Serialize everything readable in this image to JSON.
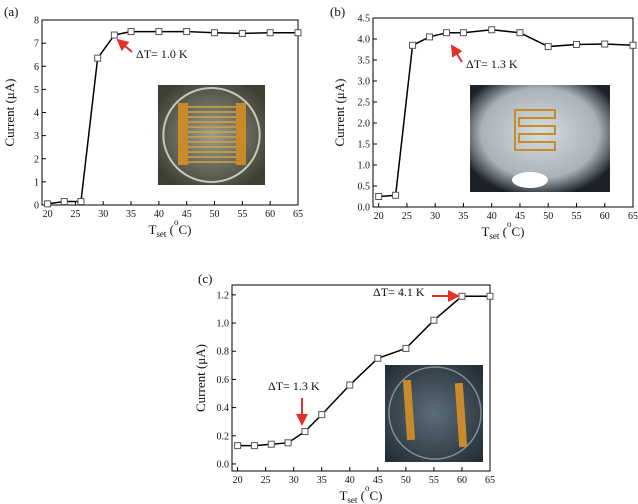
{
  "chart_data": [
    {
      "type": "line",
      "panel": "(a)",
      "y_label": "Current (μA)",
      "x_label": [
        "T",
        "set",
        " (",
        "o",
        "C)"
      ],
      "x": [
        20,
        23,
        26,
        29,
        32,
        35,
        40,
        45,
        50,
        55,
        60,
        65
      ],
      "values": [
        0.05,
        0.15,
        0.15,
        6.35,
        7.35,
        7.5,
        7.5,
        7.5,
        7.45,
        7.42,
        7.45,
        7.45
      ],
      "color": "#000000",
      "xlim": [
        19,
        65
      ],
      "xticks": [
        20,
        25,
        30,
        35,
        40,
        45,
        50,
        55,
        60,
        65
      ],
      "ylim": [
        0,
        8
      ],
      "yticks": [
        0,
        1,
        2,
        3,
        4,
        5,
        6,
        7,
        8
      ],
      "annotations": [
        "ΔT= 1.0 K"
      ]
    },
    {
      "type": "line",
      "panel": "(b)",
      "y_label": "Current (μA)",
      "x_label": [
        "T",
        "set",
        " (",
        "o",
        "C)"
      ],
      "x": [
        20,
        23,
        26,
        29,
        32,
        35,
        40,
        45,
        50,
        55,
        60,
        65
      ],
      "values": [
        0.25,
        0.28,
        3.85,
        4.05,
        4.15,
        4.15,
        4.22,
        4.15,
        3.82,
        3.87,
        3.88,
        3.85
      ],
      "color": "#000000",
      "xlim": [
        19,
        65
      ],
      "xticks": [
        20,
        25,
        30,
        35,
        40,
        45,
        50,
        55,
        60,
        65
      ],
      "ylim": [
        0,
        4.5
      ],
      "yticks": [
        {
          "value": 0,
          "label": "0.0"
        },
        0.5,
        {
          "value": 1,
          "label": "1.0"
        },
        1.5,
        {
          "value": 2,
          "label": "2.0"
        },
        2.5,
        {
          "value": 3,
          "label": "3.0"
        },
        3.5,
        {
          "value": 4,
          "label": "4.0"
        },
        4.5
      ],
      "annotations": [
        "ΔT= 1.3 K"
      ]
    },
    {
      "type": "line",
      "panel": "(c)",
      "y_label": "Current (μA)",
      "x_label": [
        "T",
        "set",
        " (",
        "o",
        "C)"
      ],
      "x": [
        20,
        23,
        26,
        29,
        32,
        35,
        40,
        45,
        50,
        55,
        60,
        65
      ],
      "values": [
        0.13,
        0.13,
        0.14,
        0.15,
        0.23,
        0.35,
        0.56,
        0.75,
        0.82,
        1.02,
        1.19,
        1.19
      ],
      "color": "#000000",
      "xlim": [
        19,
        65
      ],
      "xticks": [
        20,
        25,
        30,
        35,
        40,
        45,
        50,
        55,
        60,
        65
      ],
      "ylim": [
        -0.05,
        1.27
      ],
      "yticks": [
        {
          "value": 0,
          "label": "0.0"
        },
        0.2,
        0.4,
        0.6,
        0.8,
        {
          "value": 1,
          "label": "1.0"
        },
        1.2
      ],
      "annotations": [
        "ΔT= 1.3 K",
        "ΔT= 4.1 K"
      ]
    }
  ]
}
